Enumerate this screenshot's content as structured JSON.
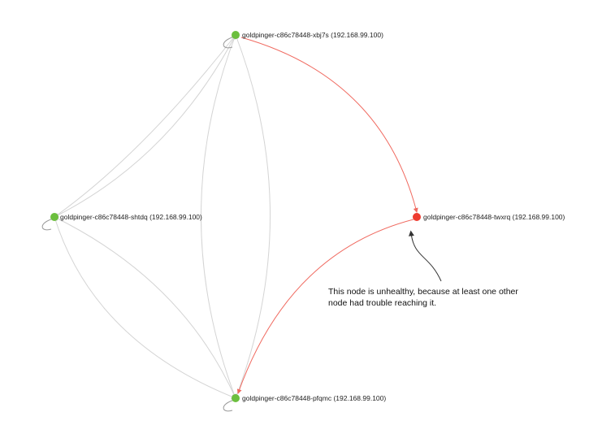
{
  "nodes": [
    {
      "id": "xbj7s",
      "label": "goldpinger-c86c78448-xbj7s (192.168.99.100)",
      "status": "healthy"
    },
    {
      "id": "shtdq",
      "label": "goldpinger-c86c78448-shtdq (192.168.99.100)",
      "status": "healthy"
    },
    {
      "id": "twxrq",
      "label": "goldpinger-c86c78448-twxrq (192.168.99.100)",
      "status": "unhealthy"
    },
    {
      "id": "pfqmc",
      "label": "goldpinger-c86c78448-pfqmc (192.168.99.100)",
      "status": "healthy"
    }
  ],
  "annotation": {
    "line1": "This node is unhealthy, because at least one other",
    "line2": "node had trouble reaching it."
  },
  "colors": {
    "healthy": "#6cbf3e",
    "unhealthy": "#ee3b2f",
    "edge_ok": "#d4d4d4",
    "edge_bad": "#f06a60"
  }
}
